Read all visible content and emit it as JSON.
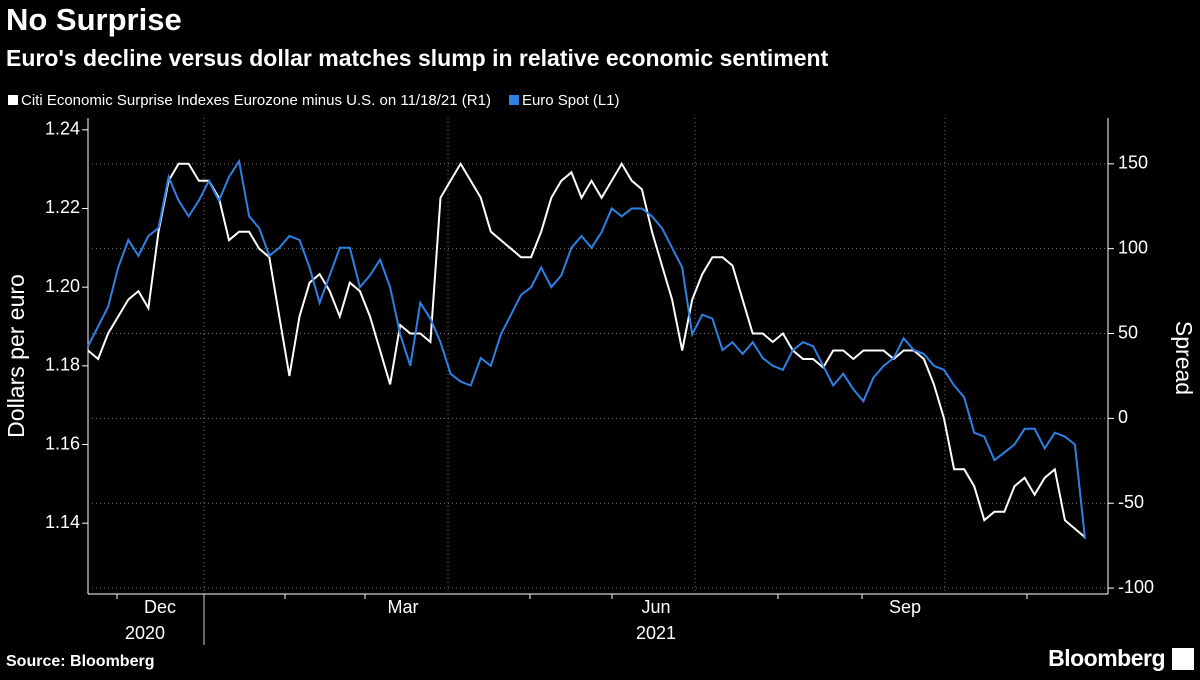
{
  "chart_data": {
    "type": "line",
    "title": "No Surprise",
    "subtitle": "Euro's decline versus dollar matches slump in relative economic sentiment",
    "ylabel": "Dollars per euro",
    "y2label": "Spread",
    "source": "Source: Bloomberg",
    "brand": "Bloomberg",
    "months": [
      "Dec",
      "Mar",
      "Jun",
      "Sep"
    ],
    "years": [
      "2020",
      "2021"
    ],
    "ylim": [
      1.122,
      1.243
    ],
    "yticks": [
      1.14,
      1.16,
      1.18,
      {
        "value": 1.2,
        "label": "1.20"
      },
      1.22,
      1.24
    ],
    "y2lim": [
      -103.5,
      177
    ],
    "y2ticks": [
      -100,
      -50,
      0,
      50,
      100,
      150
    ],
    "grid": true,
    "series": [
      {
        "name": "Citi Economic Surprise Indexes Eurozone minus U.S. on 11/18/21 (R1)",
        "color": "#ffffff",
        "axis": "y2",
        "values": [
          40,
          35,
          50,
          60,
          70,
          75,
          65,
          110,
          140,
          150,
          150,
          140,
          140,
          130,
          105,
          110,
          110,
          100,
          95,
          60,
          25,
          60,
          80,
          85,
          75,
          60,
          80,
          75,
          60,
          40,
          20,
          55,
          50,
          50,
          45,
          130,
          140,
          150,
          140,
          130,
          110,
          105,
          100,
          95,
          95,
          110,
          130,
          140,
          145,
          130,
          140,
          130,
          140,
          150,
          140,
          135,
          110,
          90,
          70,
          40,
          70,
          85,
          95,
          95,
          90,
          70,
          50,
          50,
          45,
          50,
          40,
          35,
          35,
          30,
          40,
          40,
          35,
          40,
          40,
          40,
          35,
          40,
          40,
          35,
          20,
          0,
          -30,
          -30,
          -40,
          -60,
          -55,
          -55,
          -40,
          -35,
          -45,
          -35,
          -30,
          -60,
          -65,
          -70
        ]
      },
      {
        "name": "Euro Spot (L1)",
        "color": "#2f80e4",
        "values": [
          1.185,
          1.19,
          1.195,
          1.205,
          1.212,
          1.208,
          1.213,
          1.215,
          1.228,
          1.222,
          1.218,
          1.222,
          1.227,
          1.222,
          1.228,
          1.232,
          1.218,
          1.215,
          1.208,
          1.21,
          1.213,
          1.212,
          1.205,
          1.196,
          1.203,
          1.21,
          1.21,
          1.2,
          1.203,
          1.207,
          1.2,
          1.188,
          1.18,
          1.196,
          1.192,
          1.186,
          1.178,
          1.176,
          1.175,
          1.182,
          1.18,
          1.188,
          1.193,
          1.198,
          1.2,
          1.205,
          1.2,
          1.203,
          1.21,
          1.213,
          1.21,
          1.214,
          1.22,
          1.218,
          1.22,
          1.22,
          1.218,
          1.215,
          1.21,
          1.205,
          1.188,
          1.193,
          1.192,
          1.184,
          1.186,
          1.183,
          1.186,
          1.182,
          1.18,
          1.179,
          1.184,
          1.186,
          1.185,
          1.18,
          1.175,
          1.178,
          1.174,
          1.171,
          1.177,
          1.18,
          1.182,
          1.187,
          1.184,
          1.183,
          1.18,
          1.179,
          1.175,
          1.172,
          1.163,
          1.162,
          1.156,
          1.158,
          1.16,
          1.164,
          1.164,
          1.159,
          1.163,
          1.162,
          1.16,
          1.136
        ]
      }
    ]
  }
}
